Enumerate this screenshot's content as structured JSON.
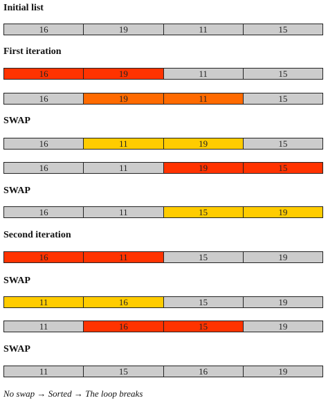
{
  "colors": {
    "gray": "#cccccc",
    "red": "#ff3300",
    "orange": "#ff6a00",
    "yellow": "#ffcc00"
  },
  "sections": [
    {
      "label": "Initial list",
      "rows": [
        {
          "cells": [
            {
              "value": "16",
              "color": "gray"
            },
            {
              "value": "19",
              "color": "gray"
            },
            {
              "value": "11",
              "color": "gray"
            },
            {
              "value": "15",
              "color": "gray"
            }
          ]
        }
      ]
    },
    {
      "label": "First iteration",
      "rows": [
        {
          "cells": [
            {
              "value": "16",
              "color": "red"
            },
            {
              "value": "19",
              "color": "red"
            },
            {
              "value": "11",
              "color": "gray"
            },
            {
              "value": "15",
              "color": "gray"
            }
          ]
        },
        {
          "cells": [
            {
              "value": "16",
              "color": "gray"
            },
            {
              "value": "19",
              "color": "orange"
            },
            {
              "value": "11",
              "color": "orange"
            },
            {
              "value": "15",
              "color": "gray"
            }
          ]
        }
      ]
    },
    {
      "label": "SWAP",
      "rows": [
        {
          "cells": [
            {
              "value": "16",
              "color": "gray"
            },
            {
              "value": "11",
              "color": "yellow"
            },
            {
              "value": "19",
              "color": "yellow"
            },
            {
              "value": "15",
              "color": "gray"
            }
          ]
        },
        {
          "cells": [
            {
              "value": "16",
              "color": "gray"
            },
            {
              "value": "11",
              "color": "gray"
            },
            {
              "value": "19",
              "color": "red"
            },
            {
              "value": "15",
              "color": "red"
            }
          ]
        }
      ]
    },
    {
      "label": "SWAP",
      "rows": [
        {
          "cells": [
            {
              "value": "16",
              "color": "gray"
            },
            {
              "value": "11",
              "color": "gray"
            },
            {
              "value": "15",
              "color": "yellow"
            },
            {
              "value": "19",
              "color": "yellow"
            }
          ]
        }
      ]
    },
    {
      "label": "Second iteration",
      "rows": [
        {
          "cells": [
            {
              "value": "16",
              "color": "red"
            },
            {
              "value": "11",
              "color": "red"
            },
            {
              "value": "15",
              "color": "gray"
            },
            {
              "value": "19",
              "color": "gray"
            }
          ]
        }
      ]
    },
    {
      "label": "SWAP",
      "rows": [
        {
          "cells": [
            {
              "value": "11",
              "color": "yellow"
            },
            {
              "value": "16",
              "color": "yellow"
            },
            {
              "value": "15",
              "color": "gray"
            },
            {
              "value": "19",
              "color": "gray"
            }
          ]
        },
        {
          "cells": [
            {
              "value": "11",
              "color": "gray"
            },
            {
              "value": "16",
              "color": "red"
            },
            {
              "value": "15",
              "color": "red"
            },
            {
              "value": "19",
              "color": "gray"
            }
          ]
        }
      ]
    },
    {
      "label": "SWAP",
      "rows": [
        {
          "cells": [
            {
              "value": "11",
              "color": "gray"
            },
            {
              "value": "15",
              "color": "gray"
            },
            {
              "value": "16",
              "color": "gray"
            },
            {
              "value": "19",
              "color": "gray"
            }
          ]
        }
      ]
    }
  ],
  "footer": "No swap → Sorted → The loop breaks"
}
